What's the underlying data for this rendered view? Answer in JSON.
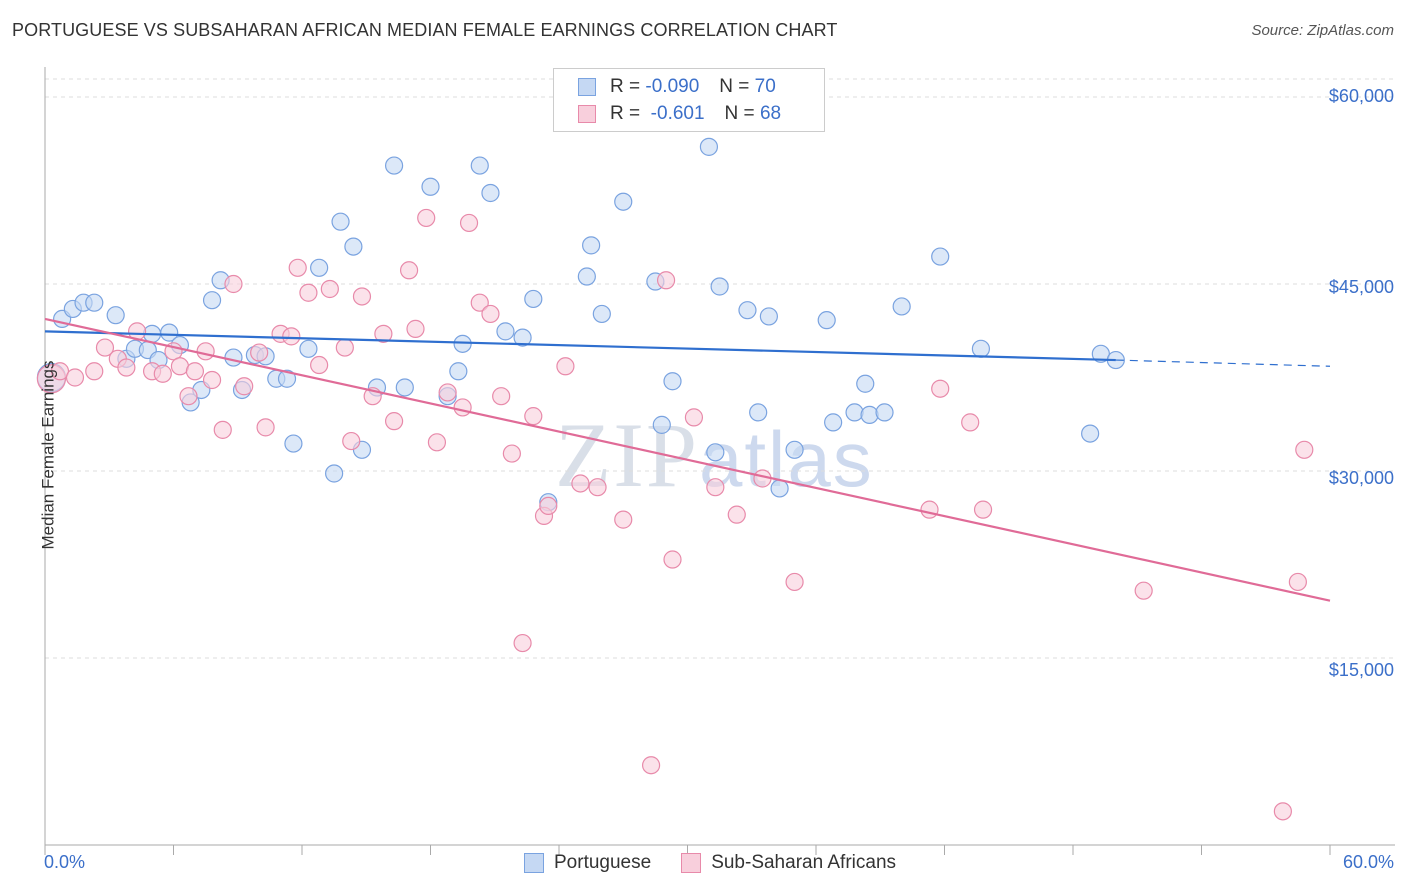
{
  "title": "PORTUGUESE VS SUBSAHARAN AFRICAN MEDIAN FEMALE EARNINGS CORRELATION CHART",
  "source": "Source: ZipAtlas.com",
  "watermark": {
    "zip": "ZIP",
    "atlas": "atlas"
  },
  "legend": {
    "r_label": "R =",
    "n_label": "N =",
    "portuguese": {
      "r": "-0.090",
      "n": "70"
    },
    "subsaharan": {
      "r": "-0.601",
      "n": "68"
    }
  },
  "bottom_legend": {
    "portuguese": "Portuguese",
    "subsaharan": "Sub-Saharan Africans"
  },
  "colors": {
    "blue_fill": "#c5d8f3",
    "blue_stroke": "#7aa3e0",
    "blue_line": "#2f6fcf",
    "pink_fill": "#f8cfdc",
    "pink_stroke": "#e88aaa",
    "pink_line": "#e06b97",
    "grid": "#dddddd",
    "tick_text": "#3b6fc9"
  },
  "chart_data": {
    "type": "scatter",
    "title": "PORTUGUESE VS SUBSAHARAN AFRICAN MEDIAN FEMALE EARNINGS CORRELATION CHART",
    "xlabel": "",
    "ylabel": "Median Female Earnings",
    "xlim": [
      0,
      60
    ],
    "ylim": [
      0,
      60000
    ],
    "x_tick_labels": [
      "0.0%",
      "60.0%"
    ],
    "y_ticks": [
      15000,
      30000,
      45000,
      60000
    ],
    "y_tick_labels": [
      "$15,000",
      "$30,000",
      "$45,000",
      "$60,000"
    ],
    "series": [
      {
        "name": "Portuguese",
        "trend": {
          "x": [
            0,
            50
          ],
          "y": [
            41200,
            38900
          ],
          "dash_to": [
            60,
            38400
          ]
        },
        "points": [
          [
            0.3,
            37500
          ],
          [
            0.8,
            42200
          ],
          [
            1.3,
            43000
          ],
          [
            1.8,
            43500
          ],
          [
            2.3,
            43500
          ],
          [
            3.3,
            42500
          ],
          [
            3.8,
            39000
          ],
          [
            4.2,
            39800
          ],
          [
            4.8,
            39700
          ],
          [
            5.0,
            41000
          ],
          [
            5.3,
            38900
          ],
          [
            5.8,
            41100
          ],
          [
            6.3,
            40100
          ],
          [
            6.8,
            35500
          ],
          [
            7.3,
            36500
          ],
          [
            7.8,
            43700
          ],
          [
            8.2,
            45300
          ],
          [
            8.8,
            39100
          ],
          [
            9.2,
            36500
          ],
          [
            9.8,
            39300
          ],
          [
            10.3,
            39200
          ],
          [
            10.8,
            37400
          ],
          [
            11.3,
            37400
          ],
          [
            11.6,
            32200
          ],
          [
            12.3,
            39800
          ],
          [
            12.8,
            46300
          ],
          [
            13.5,
            29800
          ],
          [
            13.8,
            50000
          ],
          [
            14.4,
            48000
          ],
          [
            14.8,
            31700
          ],
          [
            15.5,
            36700
          ],
          [
            16.3,
            54500
          ],
          [
            16.8,
            36700
          ],
          [
            18.0,
            52800
          ],
          [
            18.8,
            36000
          ],
          [
            19.3,
            38000
          ],
          [
            19.5,
            40200
          ],
          [
            20.3,
            54500
          ],
          [
            20.8,
            52300
          ],
          [
            21.5,
            41200
          ],
          [
            22.3,
            40700
          ],
          [
            22.8,
            43800
          ],
          [
            23.5,
            27500
          ],
          [
            25.3,
            45600
          ],
          [
            25.5,
            48100
          ],
          [
            26.0,
            42600
          ],
          [
            27.0,
            51600
          ],
          [
            28.5,
            45200
          ],
          [
            28.8,
            33700
          ],
          [
            29.3,
            37200
          ],
          [
            31.0,
            56000
          ],
          [
            31.3,
            31500
          ],
          [
            31.5,
            44800
          ],
          [
            32.8,
            42900
          ],
          [
            33.3,
            34700
          ],
          [
            33.8,
            42400
          ],
          [
            34.3,
            28600
          ],
          [
            35.0,
            31700
          ],
          [
            36.5,
            42100
          ],
          [
            36.8,
            33900
          ],
          [
            37.8,
            34700
          ],
          [
            38.3,
            37000
          ],
          [
            38.5,
            34500
          ],
          [
            39.2,
            34700
          ],
          [
            40.0,
            43200
          ],
          [
            41.8,
            47200
          ],
          [
            43.7,
            39800
          ],
          [
            48.8,
            33000
          ],
          [
            49.3,
            39400
          ],
          [
            50.0,
            38900
          ]
        ]
      },
      {
        "name": "Sub-Saharan Africans",
        "trend": {
          "x": [
            0,
            60
          ],
          "y": [
            42200,
            19600
          ]
        },
        "points": [
          [
            0.3,
            37400
          ],
          [
            0.7,
            38000
          ],
          [
            1.4,
            37500
          ],
          [
            2.3,
            38000
          ],
          [
            2.8,
            39900
          ],
          [
            3.4,
            39000
          ],
          [
            3.8,
            38300
          ],
          [
            4.3,
            41200
          ],
          [
            5.0,
            38000
          ],
          [
            5.5,
            37800
          ],
          [
            6.0,
            39600
          ],
          [
            6.3,
            38400
          ],
          [
            6.7,
            36000
          ],
          [
            7.0,
            38000
          ],
          [
            7.5,
            39600
          ],
          [
            7.8,
            37300
          ],
          [
            8.3,
            33300
          ],
          [
            8.8,
            45000
          ],
          [
            9.3,
            36800
          ],
          [
            10.0,
            39500
          ],
          [
            10.3,
            33500
          ],
          [
            11.0,
            41000
          ],
          [
            11.5,
            40800
          ],
          [
            11.8,
            46300
          ],
          [
            12.3,
            44300
          ],
          [
            12.8,
            38500
          ],
          [
            13.3,
            44600
          ],
          [
            14.0,
            39900
          ],
          [
            14.3,
            32400
          ],
          [
            14.8,
            44000
          ],
          [
            15.3,
            36000
          ],
          [
            15.8,
            41000
          ],
          [
            16.3,
            34000
          ],
          [
            17.0,
            46100
          ],
          [
            17.3,
            41400
          ],
          [
            17.8,
            50300
          ],
          [
            18.3,
            32300
          ],
          [
            18.8,
            36300
          ],
          [
            19.5,
            35100
          ],
          [
            19.8,
            49900
          ],
          [
            20.3,
            43500
          ],
          [
            20.8,
            42600
          ],
          [
            21.3,
            36000
          ],
          [
            21.8,
            31400
          ],
          [
            22.3,
            16200
          ],
          [
            22.8,
            34400
          ],
          [
            23.3,
            26400
          ],
          [
            23.5,
            27200
          ],
          [
            24.3,
            38400
          ],
          [
            25.0,
            29000
          ],
          [
            25.8,
            28700
          ],
          [
            27.0,
            26100
          ],
          [
            28.3,
            6400
          ],
          [
            29.0,
            45300
          ],
          [
            29.3,
            22900
          ],
          [
            30.3,
            34300
          ],
          [
            31.3,
            28700
          ],
          [
            32.3,
            26500
          ],
          [
            33.5,
            29400
          ],
          [
            35.0,
            21100
          ],
          [
            41.3,
            26900
          ],
          [
            41.8,
            36600
          ],
          [
            43.2,
            33900
          ],
          [
            43.8,
            26900
          ],
          [
            51.3,
            20400
          ],
          [
            57.8,
            2700
          ],
          [
            58.5,
            21100
          ],
          [
            58.8,
            31700
          ]
        ]
      }
    ]
  }
}
